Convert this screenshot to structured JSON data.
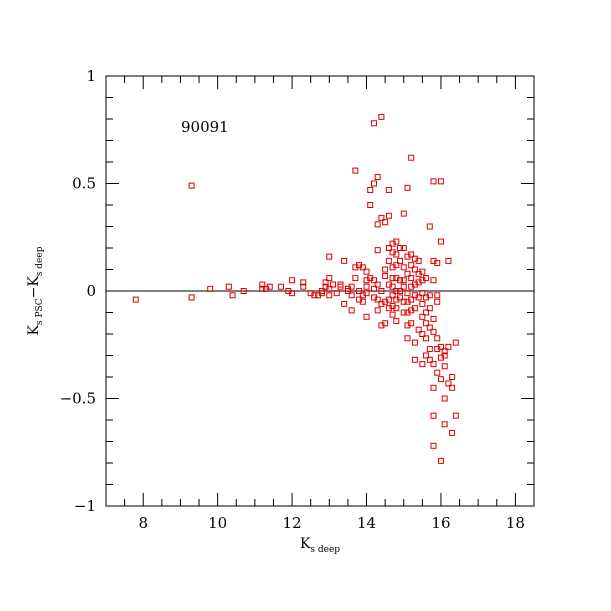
{
  "chart_data": {
    "type": "scatter",
    "annotation": "90091",
    "xlabel": {
      "main": "K",
      "sub": "s deep"
    },
    "ylabel": {
      "a_main": "K",
      "a_sub": "s PSC",
      "minus": "−",
      "b_main": "K",
      "b_sub": "s deep"
    },
    "xlim": [
      7,
      18.5
    ],
    "ylim": [
      -1,
      1
    ],
    "xticks": [
      {
        "value": 8,
        "label": "8"
      },
      {
        "value": 10,
        "label": "10"
      },
      {
        "value": 12,
        "label": "12"
      },
      {
        "value": 14,
        "label": "14"
      },
      {
        "value": 16,
        "label": "16"
      },
      {
        "value": 18,
        "label": "18"
      }
    ],
    "yticks": [
      {
        "value": 1,
        "label": "1"
      },
      {
        "value": 0.5,
        "label": "0.5"
      },
      {
        "value": 0,
        "label": "0"
      },
      {
        "value": -0.5,
        "label": "−0.5"
      },
      {
        "value": -1,
        "label": "−1"
      }
    ],
    "x_minor_step": 0.5,
    "y_minor_step": 0.1,
    "reference_line_y": 0,
    "marker_color": "#dd0000",
    "marker": "open-square",
    "points": [
      [
        7.8,
        -0.04
      ],
      [
        9.3,
        -0.03
      ],
      [
        9.3,
        0.49
      ],
      [
        9.8,
        0.01
      ],
      [
        10.3,
        0.02
      ],
      [
        10.4,
        -0.02
      ],
      [
        10.7,
        0.0
      ],
      [
        11.2,
        0.03
      ],
      [
        11.2,
        0.01
      ],
      [
        11.4,
        0.02
      ],
      [
        11.3,
        0.01
      ],
      [
        11.7,
        0.02
      ],
      [
        11.9,
        0.0
      ],
      [
        12.0,
        0.05
      ],
      [
        12.0,
        -0.01
      ],
      [
        12.3,
        0.04
      ],
      [
        12.3,
        0.02
      ],
      [
        12.5,
        -0.01
      ],
      [
        12.6,
        -0.02
      ],
      [
        12.7,
        -0.02
      ],
      [
        12.8,
        0.0
      ],
      [
        12.8,
        -0.01
      ],
      [
        12.9,
        0.02
      ],
      [
        12.9,
        0.04
      ],
      [
        13.0,
        0.06
      ],
      [
        13.0,
        0.01
      ],
      [
        13.0,
        -0.02
      ],
      [
        13.1,
        0.03
      ],
      [
        13.0,
        0.16
      ],
      [
        13.2,
        -0.01
      ],
      [
        13.3,
        0.03
      ],
      [
        13.3,
        0.02
      ],
      [
        13.4,
        0.14
      ],
      [
        13.4,
        -0.06
      ],
      [
        13.5,
        0.01
      ],
      [
        13.5,
        0.0
      ],
      [
        13.6,
        0.02
      ],
      [
        13.6,
        -0.09
      ],
      [
        13.6,
        -0.02
      ],
      [
        13.7,
        0.56
      ],
      [
        13.7,
        0.11
      ],
      [
        13.7,
        0.06
      ],
      [
        13.8,
        0.12
      ],
      [
        13.8,
        0.0
      ],
      [
        13.8,
        -0.04
      ],
      [
        13.9,
        0.11
      ],
      [
        13.9,
        -0.02
      ],
      [
        13.9,
        -0.05
      ],
      [
        14.0,
        0.09
      ],
      [
        14.0,
        0.05
      ],
      [
        14.0,
        0.02
      ],
      [
        14.0,
        -0.01
      ],
      [
        14.0,
        -0.12
      ],
      [
        14.1,
        0.47
      ],
      [
        14.1,
        0.4
      ],
      [
        14.1,
        0.06
      ],
      [
        14.2,
        0.78
      ],
      [
        14.2,
        0.5
      ],
      [
        14.2,
        0.05
      ],
      [
        14.2,
        0.01
      ],
      [
        14.2,
        -0.03
      ],
      [
        14.3,
        0.53
      ],
      [
        14.3,
        0.31
      ],
      [
        14.3,
        0.19
      ],
      [
        14.3,
        0.03
      ],
      [
        14.3,
        -0.04
      ],
      [
        14.3,
        -0.09
      ],
      [
        14.4,
        0.81
      ],
      [
        14.4,
        0.34
      ],
      [
        14.4,
        0.0
      ],
      [
        14.4,
        -0.06
      ],
      [
        14.4,
        -0.16
      ],
      [
        14.5,
        0.32
      ],
      [
        14.5,
        0.1
      ],
      [
        14.5,
        0.07
      ],
      [
        14.5,
        -0.05
      ],
      [
        14.5,
        -0.15
      ],
      [
        14.6,
        0.47
      ],
      [
        14.6,
        0.35
      ],
      [
        14.6,
        0.2
      ],
      [
        14.6,
        0.14
      ],
      [
        14.6,
        0.03
      ],
      [
        14.6,
        -0.04
      ],
      [
        14.6,
        -0.08
      ],
      [
        14.7,
        0.22
      ],
      [
        14.7,
        0.18
      ],
      [
        14.7,
        0.11
      ],
      [
        14.7,
        0.06
      ],
      [
        14.7,
        0.02
      ],
      [
        14.7,
        -0.02
      ],
      [
        14.7,
        -0.07
      ],
      [
        14.7,
        -0.11
      ],
      [
        14.8,
        0.23
      ],
      [
        14.8,
        0.17
      ],
      [
        14.8,
        0.12
      ],
      [
        14.8,
        0.06
      ],
      [
        14.8,
        0.0
      ],
      [
        14.8,
        -0.04
      ],
      [
        14.8,
        -0.08
      ],
      [
        14.8,
        -0.14
      ],
      [
        14.9,
        0.2
      ],
      [
        14.9,
        0.14
      ],
      [
        14.9,
        0.05
      ],
      [
        14.9,
        0.0
      ],
      [
        14.9,
        -0.03
      ],
      [
        15.0,
        0.36
      ],
      [
        15.0,
        0.2
      ],
      [
        15.0,
        0.11
      ],
      [
        15.0,
        0.05
      ],
      [
        15.0,
        0.02
      ],
      [
        15.0,
        -0.05
      ],
      [
        15.0,
        -0.1
      ],
      [
        15.1,
        0.48
      ],
      [
        15.1,
        0.16
      ],
      [
        15.1,
        0.08
      ],
      [
        15.1,
        -0.01
      ],
      [
        15.1,
        -0.05
      ],
      [
        15.1,
        -0.1
      ],
      [
        15.1,
        -0.16
      ],
      [
        15.1,
        -0.22
      ],
      [
        15.2,
        0.62
      ],
      [
        15.2,
        0.17
      ],
      [
        15.2,
        0.12
      ],
      [
        15.2,
        0.06
      ],
      [
        15.2,
        0.02
      ],
      [
        15.2,
        -0.04
      ],
      [
        15.2,
        -0.09
      ],
      [
        15.2,
        -0.15
      ],
      [
        15.3,
        0.15
      ],
      [
        15.3,
        0.1
      ],
      [
        15.3,
        0.03
      ],
      [
        15.3,
        -0.02
      ],
      [
        15.3,
        -0.08
      ],
      [
        15.3,
        -0.24
      ],
      [
        15.3,
        -0.32
      ],
      [
        15.4,
        0.14
      ],
      [
        15.4,
        0.08
      ],
      [
        15.4,
        0.04
      ],
      [
        15.4,
        -0.03
      ],
      [
        15.4,
        -0.18
      ],
      [
        15.5,
        0.09
      ],
      [
        15.5,
        0.05
      ],
      [
        15.5,
        -0.01
      ],
      [
        15.5,
        -0.06
      ],
      [
        15.5,
        -0.12
      ],
      [
        15.5,
        -0.2
      ],
      [
        15.5,
        -0.34
      ],
      [
        15.6,
        0.06
      ],
      [
        15.6,
        -0.03
      ],
      [
        15.6,
        -0.1
      ],
      [
        15.6,
        -0.15
      ],
      [
        15.6,
        -0.22
      ],
      [
        15.6,
        -0.3
      ],
      [
        15.7,
        -0.02
      ],
      [
        15.7,
        -0.08
      ],
      [
        15.7,
        -0.17
      ],
      [
        15.7,
        -0.27
      ],
      [
        15.7,
        -0.32
      ],
      [
        15.8,
        0.51
      ],
      [
        15.8,
        0.14
      ],
      [
        15.8,
        0.05
      ],
      [
        15.8,
        -0.13
      ],
      [
        15.8,
        -0.19
      ],
      [
        15.8,
        -0.34
      ],
      [
        15.8,
        -0.45
      ],
      [
        15.8,
        -0.58
      ],
      [
        15.8,
        -0.72
      ],
      [
        15.9,
        0.13
      ],
      [
        15.9,
        -0.02
      ],
      [
        15.9,
        -0.22
      ],
      [
        15.9,
        -0.27
      ],
      [
        15.9,
        -0.38
      ],
      [
        16.0,
        0.51
      ],
      [
        16.0,
        0.23
      ],
      [
        16.0,
        -0.31
      ],
      [
        16.0,
        -0.41
      ],
      [
        16.1,
        -0.28
      ],
      [
        16.1,
        -0.35
      ],
      [
        16.1,
        -0.5
      ],
      [
        16.1,
        -0.62
      ],
      [
        16.2,
        0.14
      ],
      [
        16.2,
        -0.26
      ],
      [
        16.2,
        -0.43
      ],
      [
        16.3,
        -0.4
      ],
      [
        16.3,
        -0.66
      ],
      [
        16.4,
        -0.24
      ],
      [
        16.4,
        -0.58
      ],
      [
        16.0,
        -0.79
      ],
      [
        16.1,
        -0.3
      ],
      [
        16.3,
        -0.45
      ],
      [
        15.9,
        -0.05
      ],
      [
        16.0,
        -0.26
      ],
      [
        15.7,
        0.3
      ]
    ]
  }
}
